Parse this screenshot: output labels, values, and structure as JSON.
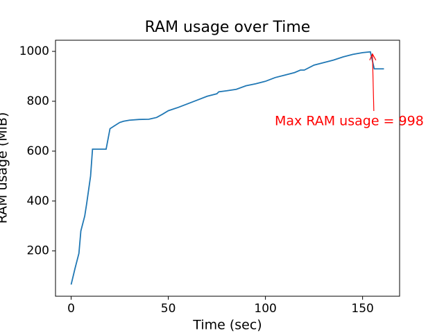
{
  "chart_data": {
    "type": "line",
    "title": "RAM usage over Time",
    "x_label": "Time (sec)",
    "y_label": "RAM usage (MiB)",
    "x": [
      0,
      2,
      4,
      5,
      7,
      8,
      10,
      11,
      18,
      20,
      22,
      25,
      27,
      30,
      35,
      40,
      44,
      47,
      50,
      55,
      60,
      65,
      70,
      75,
      76,
      80,
      85,
      90,
      95,
      100,
      105,
      110,
      115,
      118,
      120,
      125,
      130,
      135,
      140,
      145,
      150,
      154,
      156,
      161
    ],
    "series": [
      {
        "name": "RAM usage",
        "color": "#1f77b4",
        "values": [
          65,
          130,
          190,
          280,
          340,
          390,
          500,
          608,
          608,
          690,
          700,
          715,
          720,
          724,
          727,
          728,
          735,
          748,
          762,
          775,
          790,
          805,
          820,
          830,
          838,
          842,
          848,
          862,
          870,
          880,
          895,
          905,
          915,
          925,
          925,
          945,
          955,
          965,
          978,
          988,
          995,
          998,
          930,
          930
        ]
      }
    ],
    "xlim": [
      -8.05,
      169.05
    ],
    "ylim": [
      18.35,
      1044.65
    ],
    "xticks": [
      0,
      50,
      100,
      150
    ],
    "yticks": [
      200,
      400,
      600,
      800,
      1000
    ],
    "annotation": {
      "text": "Max RAM usage = 998",
      "color": "red",
      "point_index": 41
    },
    "grid": false
  }
}
